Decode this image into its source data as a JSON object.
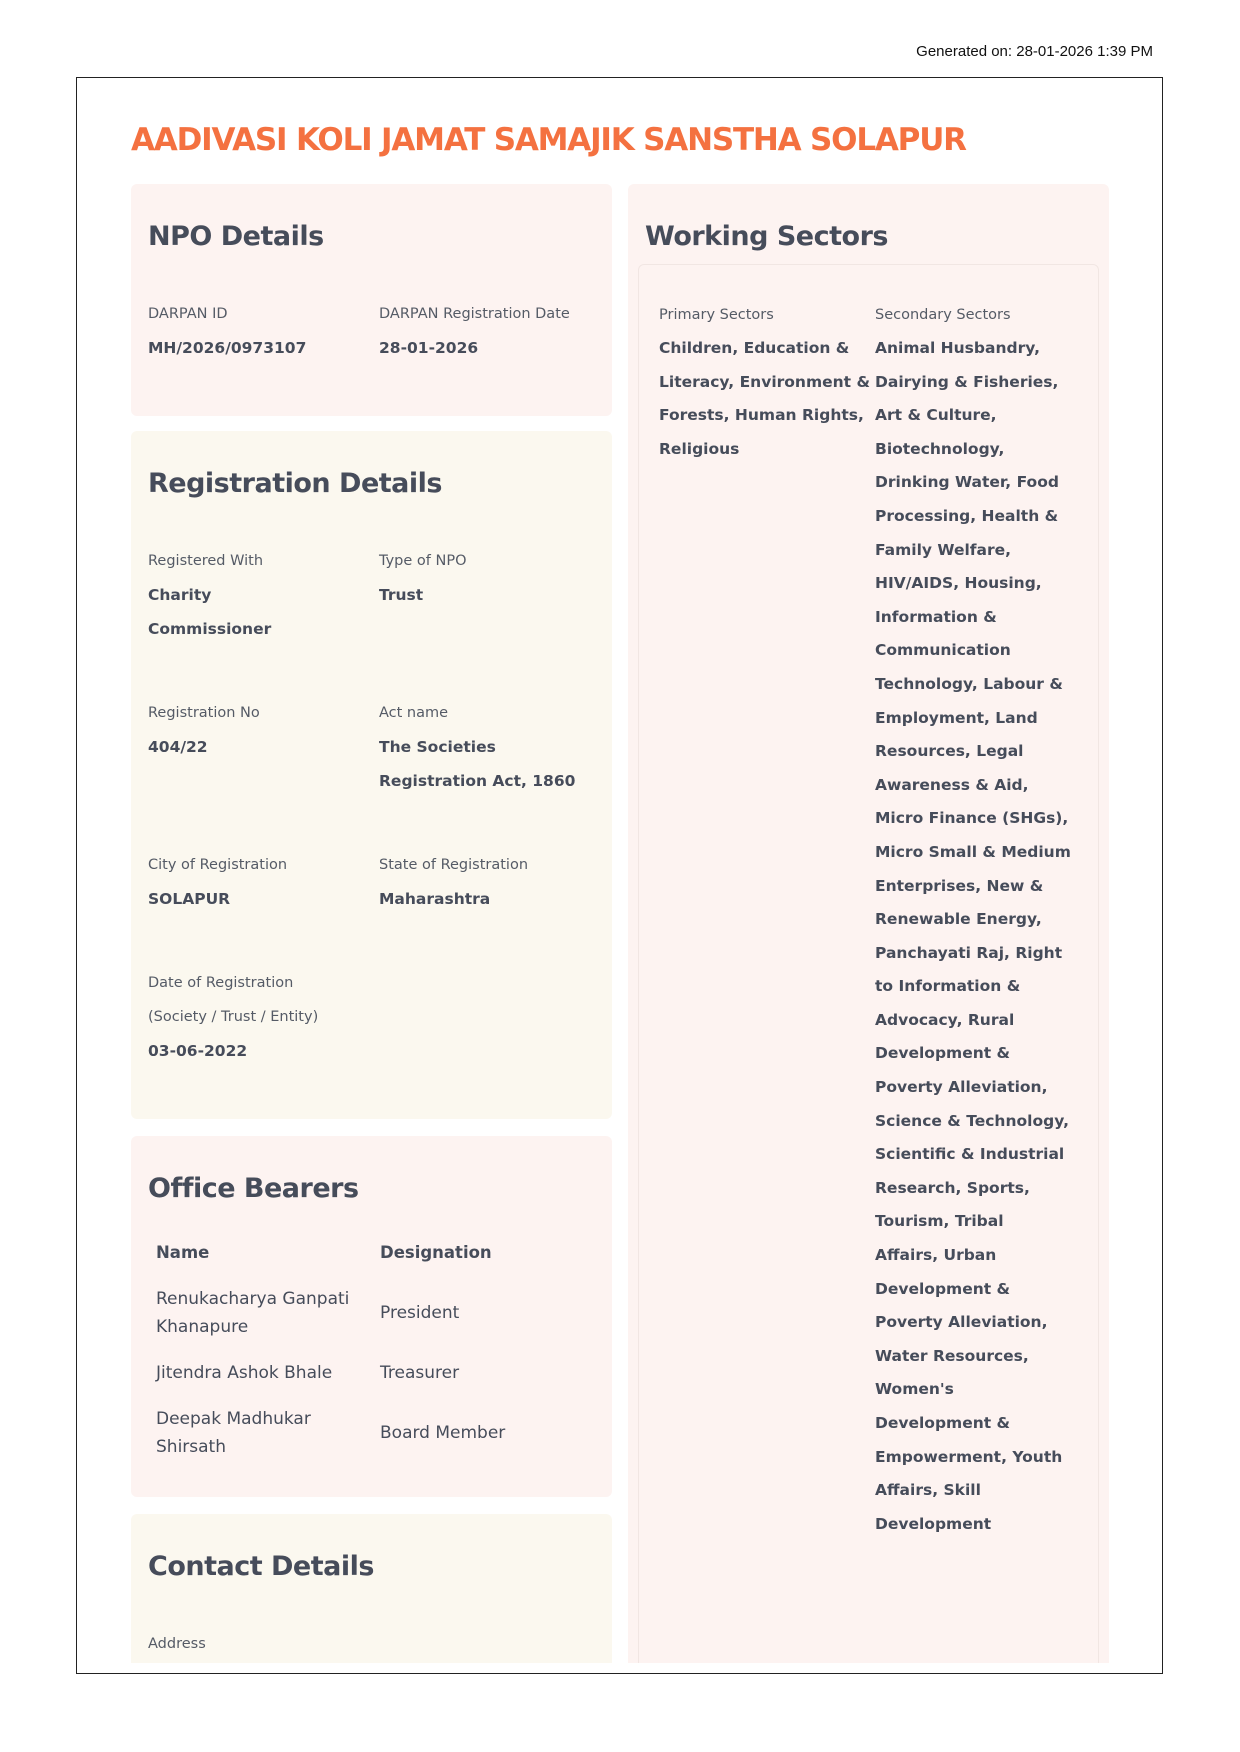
{
  "generated_on": "Generated on: 28-01-2026 1:39 PM",
  "title": "AADIVASI KOLI JAMAT SAMAJIK SANSTHA SOLAPUR",
  "colors": {
    "title": "#f47140",
    "heading": "#464c5a",
    "card_pink": "#fdf3f1",
    "card_cream": "#fbf8ef"
  },
  "npo_details": {
    "heading": "NPO Details",
    "darpan_id_label": "DARPAN ID",
    "darpan_id": "MH/2026/0973107",
    "reg_date_label": "DARPAN Registration Date",
    "reg_date": "28-01-2026"
  },
  "registration": {
    "heading": "Registration Details",
    "registered_with_label": "Registered With",
    "registered_with": "Charity Commissioner",
    "type_label": "Type of NPO",
    "type": "Trust",
    "reg_no_label": "Registration No",
    "reg_no": "404/22",
    "act_label": "Act name",
    "act": "The Societies Registration Act, 1860",
    "city_label": "City of Registration",
    "city": "SOLAPUR",
    "state_label": "State of Registration",
    "state": "Maharashtra",
    "date_label": "Date of Registration (Society / Trust / Entity)",
    "date": "03-06-2022"
  },
  "office_bearers": {
    "heading": "Office Bearers",
    "columns": [
      "Name",
      "Designation"
    ],
    "rows": [
      {
        "name": "Renukacharya Ganpati Khanapure",
        "designation": "President"
      },
      {
        "name": "Jitendra Ashok Bhale",
        "designation": "Treasurer"
      },
      {
        "name": "Deepak Madhukar Shirsath",
        "designation": "Board Member"
      }
    ]
  },
  "contact": {
    "heading": "Contact Details",
    "address_label": "Address"
  },
  "working_sectors": {
    "heading": "Working Sectors",
    "primary_label": "Primary Sectors",
    "primary": [
      "Children",
      "Education & Literacy",
      "Environment & Forests",
      "Human Rights",
      "Religious"
    ],
    "secondary_label": "Secondary Sectors",
    "secondary": [
      "Animal Husbandry",
      "Dairying & Fisheries",
      "Art & Culture",
      "Biotechnology",
      "Drinking Water",
      "Food Processing",
      "Health & Family Welfare",
      "HIV/AIDS",
      "Housing",
      "Information & Communication Technology",
      "Labour & Employment",
      "Land Resources",
      "Legal Awareness & Aid",
      "Micro Finance (SHGs)",
      "Micro Small & Medium Enterprises",
      "New & Renewable Energy",
      "Panchayati Raj",
      "Right to Information & Advocacy",
      "Rural Development & Poverty Alleviation",
      "Science & Technology",
      "Scientific & Industrial Research",
      "Sports",
      "Tourism",
      "Tribal Affairs",
      "Urban Development & Poverty Alleviation",
      "Water Resources",
      "Women's Development & Empowerment",
      "Youth Affairs",
      "Skill Development"
    ]
  }
}
